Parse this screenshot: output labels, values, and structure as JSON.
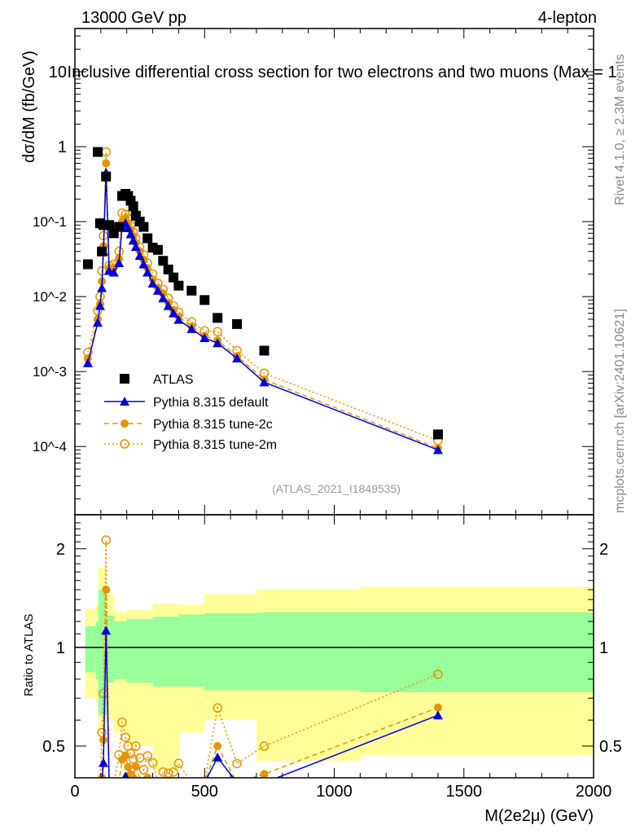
{
  "chart_data": {
    "type": "scatter",
    "header_left": "13000 GeV pp",
    "header_right": "4-lepton",
    "title": "Inclusive differential cross section for two electrons and two muons (Max = 1",
    "ylabel": "dσ/dM (fb/GeV)",
    "xlabel": "M(2e2μ) (GeV)",
    "ratio_ylabel": "Ratio to ATLAS",
    "watermark": "(ATLAS_2021_I1849535)",
    "side_text_top": "Rivet 4.1.0, ≥ 2.3M events",
    "side_text_bottom": "mcplots.cern.ch [arXiv:2401.10621]",
    "xlim": [
      0,
      2000
    ],
    "ylim": [
      1.23e-05,
      37.7
    ],
    "yscale": "log",
    "ratio_ylim": [
      0.4,
      2.54
    ],
    "ratio_yscale": "log",
    "x_ticks": [
      "0",
      "500",
      "1000",
      "1500",
      "2000"
    ],
    "y_ticks": [
      "10^-4",
      "10^-3",
      "10^-2",
      "10^-1",
      "1",
      "10"
    ],
    "ratio_ticks": [
      "0.5",
      "1",
      "2"
    ],
    "legend_position": "bottom-left",
    "x": [
      50,
      88,
      97,
      104,
      110,
      120,
      132,
      150,
      170,
      182,
      195,
      205,
      215,
      225,
      235,
      250,
      265,
      280,
      300,
      320,
      340,
      360,
      380,
      400,
      450,
      500,
      550,
      625,
      730,
      1400
    ],
    "series": [
      {
        "name": "ATLAS",
        "color": "#000000",
        "marker": "square",
        "line": "none",
        "values": [
          0.027,
          0.85,
          0.095,
          0.04,
          0.09,
          0.4,
          0.09,
          0.07,
          0.085,
          0.22,
          0.235,
          0.22,
          0.19,
          0.16,
          0.12,
          0.1,
          0.085,
          0.06,
          0.045,
          0.042,
          0.03,
          0.023,
          0.018,
          0.014,
          0.012,
          0.009,
          0.0052,
          0.0043,
          0.0019,
          0.000145
        ]
      },
      {
        "name": "Pythia 8.315 default",
        "color": "#0000dd",
        "marker": "triangle",
        "line": "solid",
        "values": [
          0.0013,
          0.0045,
          0.0075,
          0.013,
          0.04,
          0.45,
          0.022,
          0.021,
          0.028,
          0.085,
          0.095,
          0.082,
          0.068,
          0.056,
          0.046,
          0.035,
          0.027,
          0.021,
          0.015,
          0.012,
          0.0095,
          0.0075,
          0.006,
          0.0049,
          0.0037,
          0.0028,
          0.0024,
          0.0015,
          0.00072,
          9e-05
        ]
      },
      {
        "name": "Pythia 8.315 tune-2c",
        "color": "#e69500",
        "marker": "circle",
        "line": "dashed",
        "values": [
          0.0015,
          0.005,
          0.008,
          0.016,
          0.047,
          0.6,
          0.024,
          0.024,
          0.032,
          0.1,
          0.11,
          0.095,
          0.078,
          0.064,
          0.052,
          0.04,
          0.031,
          0.024,
          0.017,
          0.013,
          0.011,
          0.0083,
          0.0066,
          0.0054,
          0.004,
          0.003,
          0.0026,
          0.0016,
          0.00078,
          9.5e-05
        ]
      },
      {
        "name": "Pythia 8.315 tune-2m",
        "color": "#e69500",
        "marker": "open-circle",
        "line": "dotted",
        "values": [
          0.0018,
          0.0065,
          0.01,
          0.022,
          0.065,
          0.85,
          0.026,
          0.027,
          0.04,
          0.13,
          0.125,
          0.11,
          0.09,
          0.073,
          0.06,
          0.046,
          0.036,
          0.028,
          0.02,
          0.015,
          0.0125,
          0.0095,
          0.0075,
          0.0062,
          0.0046,
          0.0035,
          0.0034,
          0.0019,
          0.00095,
          0.00012
        ]
      }
    ],
    "uncertainty_bands": {
      "inner_color": "#99ff99",
      "outer_color": "#ffff99",
      "bins": [
        {
          "from": 40,
          "to": 80,
          "inner": [
            0.84,
            1.16
          ],
          "outer": [
            0.7,
            1.31
          ]
        },
        {
          "from": 80,
          "to": 90,
          "inner": [
            0.8,
            1.2
          ],
          "outer": [
            0.68,
            1.35
          ]
        },
        {
          "from": 90,
          "to": 120,
          "inner": [
            0.62,
            1.5
          ],
          "outer": [
            0.55,
            1.75
          ]
        },
        {
          "from": 120,
          "to": 150,
          "inner": [
            0.78,
            1.25
          ],
          "outer": [
            0.6,
            1.45
          ]
        },
        {
          "from": 150,
          "to": 200,
          "inner": [
            0.8,
            1.2
          ],
          "outer": [
            0.55,
            1.28
          ]
        },
        {
          "from": 200,
          "to": 300,
          "inner": [
            0.78,
            1.22
          ],
          "outer": [
            0.5,
            1.3
          ]
        },
        {
          "from": 300,
          "to": 400,
          "inner": [
            0.76,
            1.24
          ],
          "outer": [
            0.42,
            1.36
          ]
        },
        {
          "from": 400,
          "to": 500,
          "inner": [
            0.76,
            1.26
          ],
          "outer": [
            0.55,
            1.35
          ]
        },
        {
          "from": 500,
          "to": 700,
          "inner": [
            0.74,
            1.27
          ],
          "outer": [
            0.6,
            1.45
          ]
        },
        {
          "from": 700,
          "to": 1100,
          "inner": [
            0.74,
            1.28
          ],
          "outer": [
            0.45,
            1.5
          ]
        },
        {
          "from": 1100,
          "to": 2000,
          "inner": [
            0.73,
            1.28
          ],
          "outer": [
            0.47,
            1.53
          ]
        }
      ]
    }
  }
}
